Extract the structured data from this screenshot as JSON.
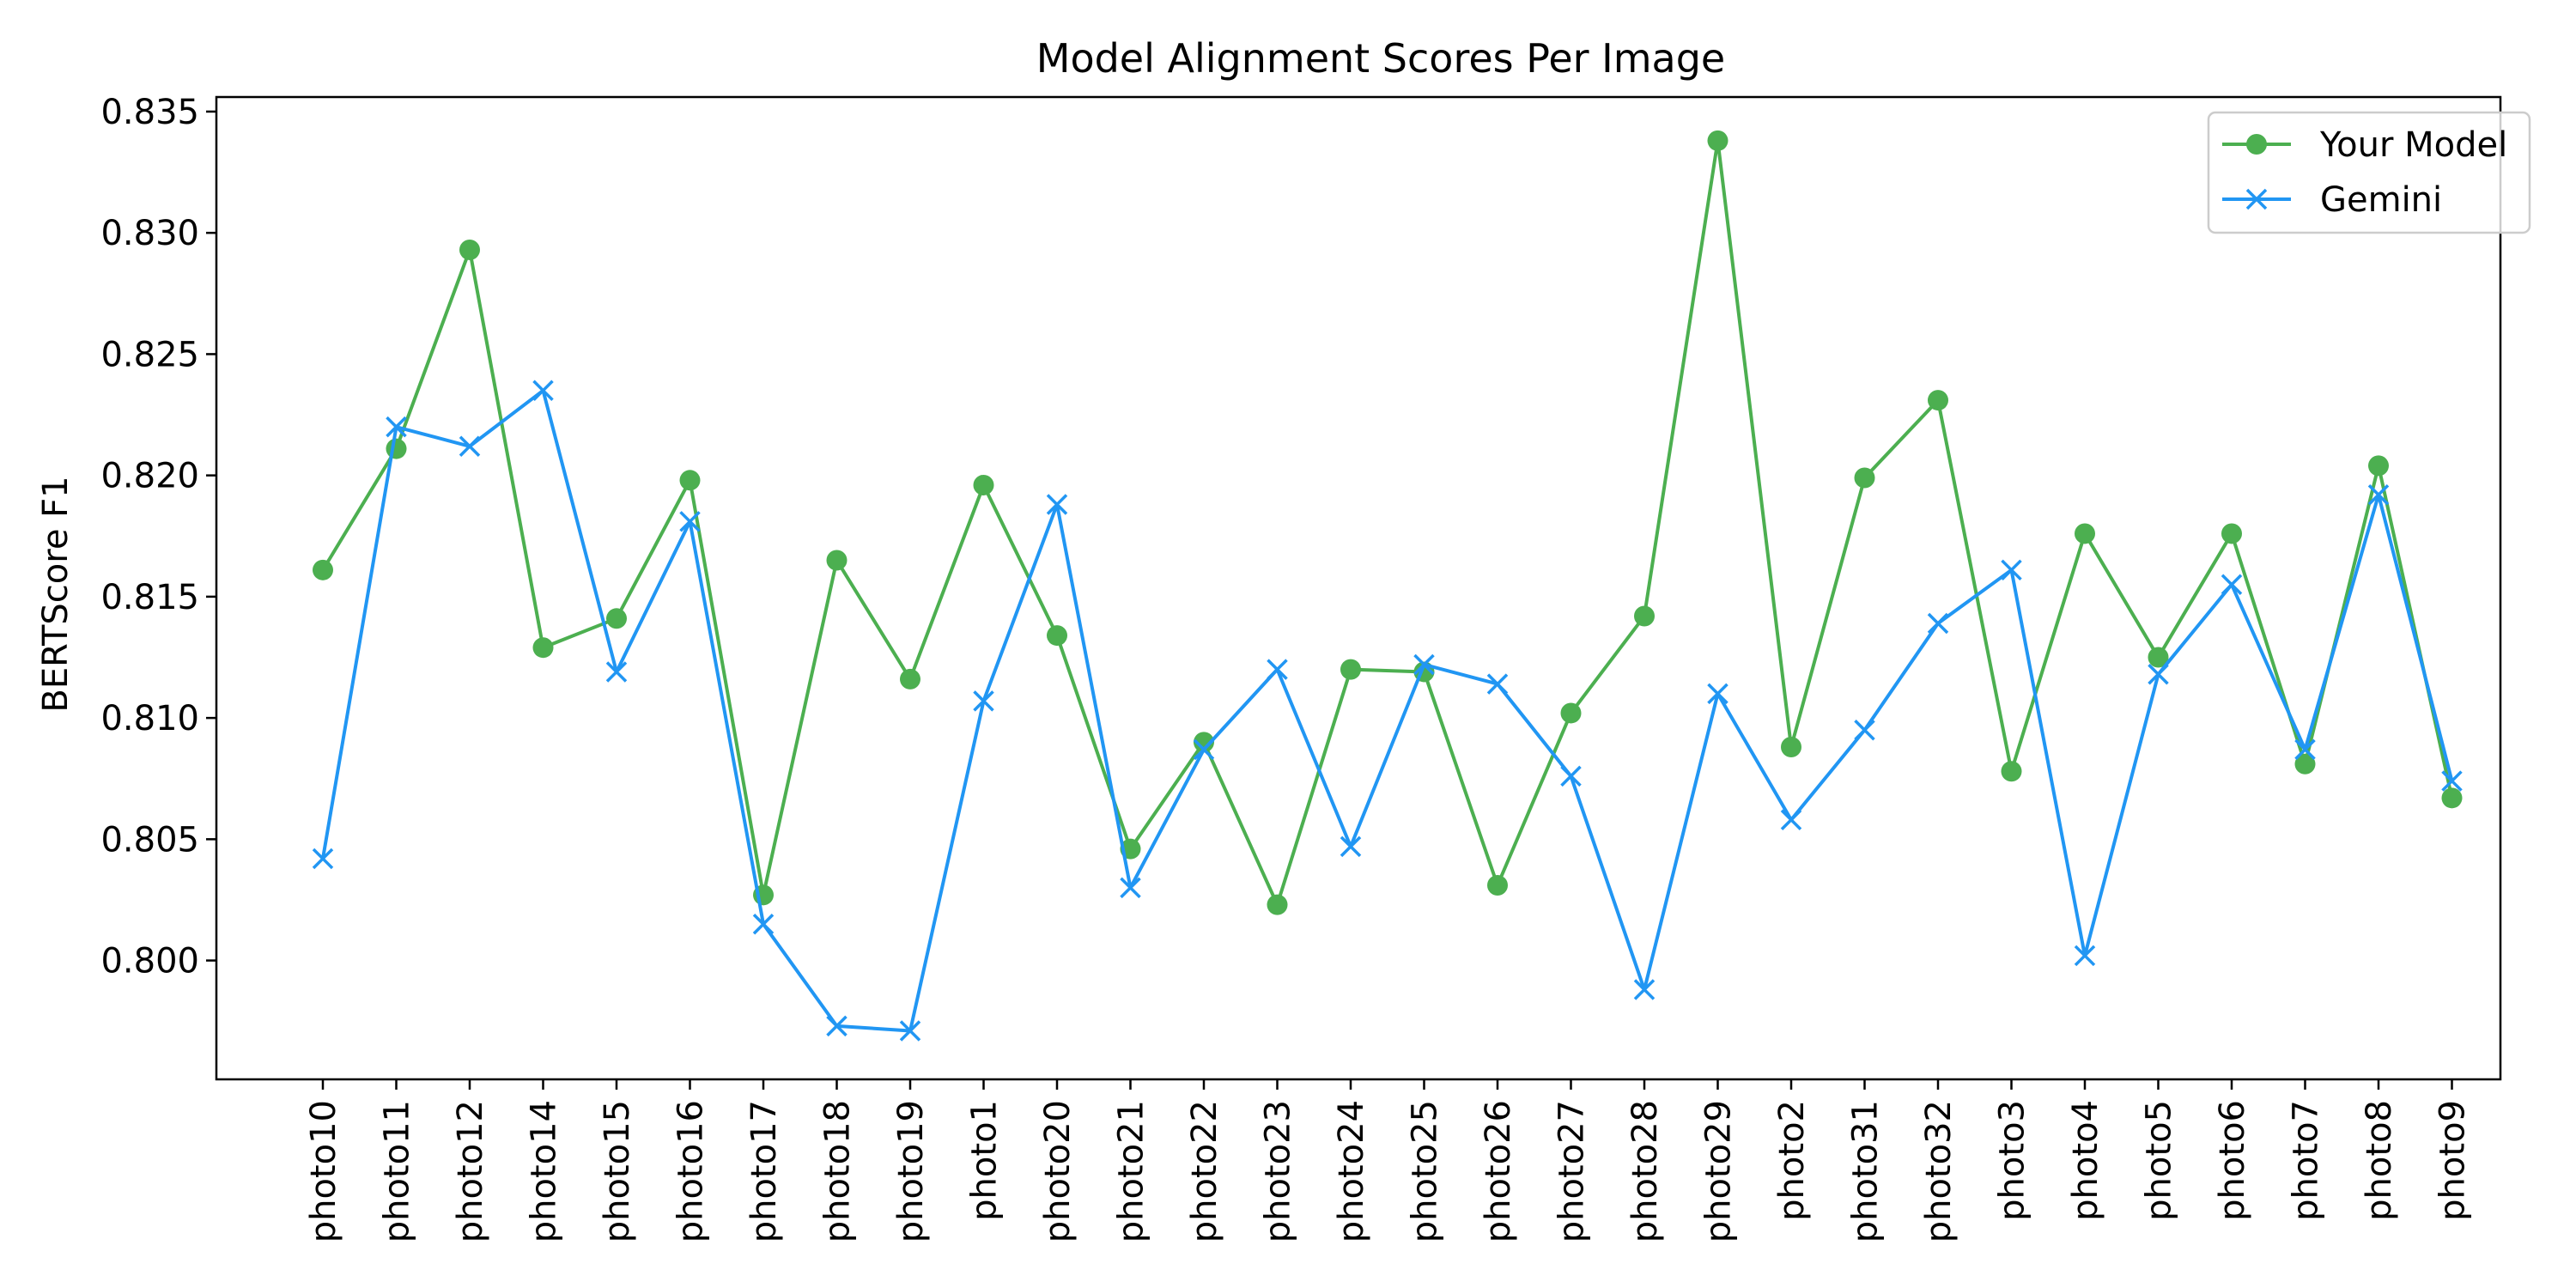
{
  "chart_data": {
    "type": "line",
    "title": "Model Alignment Scores Per Image",
    "xlabel": "",
    "ylabel": "BERTScore F1",
    "ylim": [
      0.7951,
      0.8356
    ],
    "yticks": [
      "0.800",
      "0.805",
      "0.810",
      "0.815",
      "0.820",
      "0.825",
      "0.830",
      "0.835"
    ],
    "grid": false,
    "legend_position": "top-right",
    "categories": [
      "photo10",
      "photo11",
      "photo12",
      "photo14",
      "photo15",
      "photo16",
      "photo17",
      "photo18",
      "photo19",
      "photo1",
      "photo20",
      "photo21",
      "photo22",
      "photo23",
      "photo24",
      "photo25",
      "photo26",
      "photo27",
      "photo28",
      "photo29",
      "photo2",
      "photo31",
      "photo32",
      "photo3",
      "photo4",
      "photo5",
      "photo6",
      "photo7",
      "photo8",
      "photo9"
    ],
    "series": [
      {
        "name": "Your Model",
        "color": "#4caf50",
        "marker": "circle",
        "values": [
          0.8161,
          0.8211,
          0.8293,
          0.8129,
          0.8141,
          0.8198,
          0.8027,
          0.8165,
          0.8116,
          0.8196,
          0.8134,
          0.8046,
          0.809,
          0.8023,
          0.812,
          0.8119,
          0.8031,
          0.8102,
          0.8142,
          0.8338,
          0.8088,
          0.8199,
          0.8231,
          0.8078,
          0.8176,
          0.8125,
          0.8176,
          0.8081,
          0.8204,
          0.8067
        ]
      },
      {
        "name": "Gemini",
        "color": "#2196f3",
        "marker": "x",
        "values": [
          0.8042,
          0.822,
          0.8212,
          0.8235,
          0.8119,
          0.8181,
          0.8015,
          0.7973,
          0.7971,
          0.8107,
          0.8188,
          0.803,
          0.8087,
          0.812,
          0.8047,
          0.8122,
          0.8114,
          0.8076,
          0.7988,
          0.811,
          0.8058,
          0.8095,
          0.8139,
          0.8161,
          0.8002,
          0.8118,
          0.8155,
          0.8087,
          0.8192,
          0.8074
        ]
      }
    ]
  }
}
